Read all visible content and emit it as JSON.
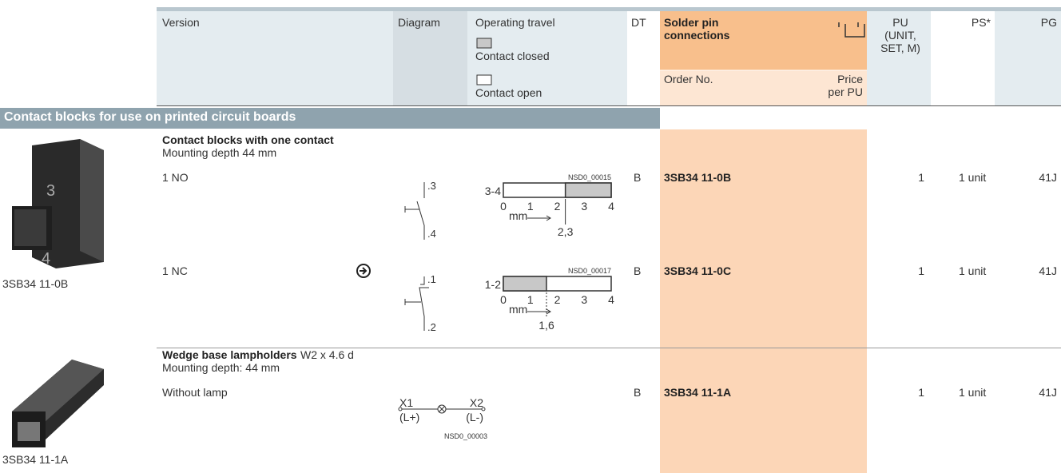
{
  "header": {
    "version": "Version",
    "diagram": "Diagram",
    "operating_travel": "Operating travel",
    "contact_closed": "Contact closed",
    "contact_open": "Contact open",
    "dt": "DT",
    "connection": "Solder pin connections",
    "order_no": "Order No.",
    "price": "Price per PU",
    "pu": "PU (UNIT, SET, M)",
    "ps": "PS*",
    "pg": "PG"
  },
  "section": "Contact blocks for use on printed circuit boards",
  "groups": [
    {
      "title": "Contact blocks with one contact",
      "subtitle": "Mounting depth 44 mm",
      "image_caption": "3SB34 11-0B",
      "rows": [
        {
          "version": "1 NO",
          "terminals": [
            ".3",
            ".4"
          ],
          "travel": {
            "drawing_no": "NSD0_00015",
            "contacts": "3-4",
            "scale": [
              0,
              1,
              2,
              3,
              4
            ],
            "unit": "mm",
            "point": {
              "value": 2.3,
              "label": "2,3"
            }
          },
          "dt": "B",
          "order_no": "3SB34 11-0B",
          "pu": 1,
          "ps": "1 unit",
          "pg": "41J"
        },
        {
          "version": "1 NC",
          "terminals": [
            ".1",
            ".2"
          ],
          "travel": {
            "drawing_no": "NSD0_00017",
            "contacts": "1-2",
            "scale": [
              0,
              1,
              2,
              3,
              4
            ],
            "unit": "mm",
            "point": {
              "value": 1.6,
              "label": "1,6"
            }
          },
          "dt": "B",
          "order_no": "3SB34 11-0C",
          "pu": 1,
          "ps": "1 unit",
          "pg": "41J"
        }
      ]
    },
    {
      "title": "Wedge base lampholders",
      "title_suffix": "W2 x 4.6 d",
      "subtitle": "Mounting depth: 44 mm",
      "image_caption": "3SB34 11-1A",
      "rows": [
        {
          "version": "Without lamp",
          "terminals": [
            "X1",
            "X2",
            "(L+)",
            "(L-)"
          ],
          "drawing_no": "NSD0_00003",
          "dt": "B",
          "order_no": "3SB34 11-1A",
          "pu": 1,
          "ps": "1 unit",
          "pg": "41J"
        }
      ]
    }
  ]
}
